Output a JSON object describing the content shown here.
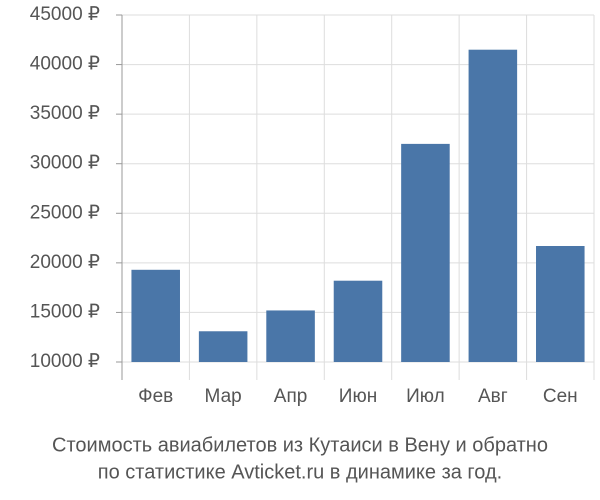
{
  "chart_data": {
    "type": "bar",
    "categories": [
      "Фев",
      "Мар",
      "Апр",
      "Июн",
      "Июл",
      "Авг",
      "Сен"
    ],
    "values": [
      19300,
      13100,
      15200,
      18200,
      32000,
      41500,
      21700
    ],
    "color": "#4a76a8",
    "ylim": [
      10000,
      45000
    ],
    "yticks": [
      {
        "value": 10000,
        "label": "10000 ₽"
      },
      {
        "value": 15000,
        "label": "15000 ₽"
      },
      {
        "value": 20000,
        "label": "20000 ₽"
      },
      {
        "value": 25000,
        "label": "25000 ₽"
      },
      {
        "value": 30000,
        "label": "30000 ₽"
      },
      {
        "value": 35000,
        "label": "35000 ₽"
      },
      {
        "value": 40000,
        "label": "40000 ₽"
      },
      {
        "value": 45000,
        "label": "45000 ₽"
      }
    ],
    "grid": true,
    "caption": [
      "Стоимость авиабилетов из Кутаиси в Вену и обратно",
      "по статистике Avticket.ru в динамике за год."
    ]
  }
}
